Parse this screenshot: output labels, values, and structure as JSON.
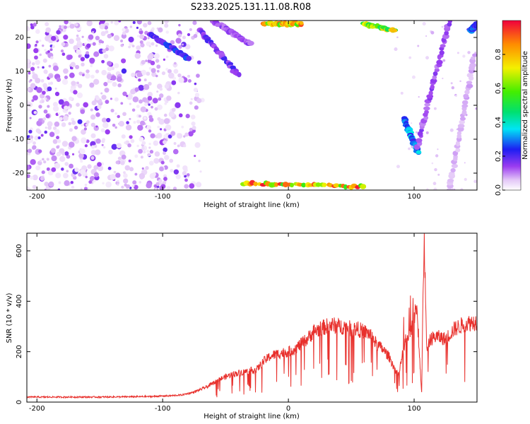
{
  "title": "S233.2025.131.11.08.R08",
  "colors": {
    "snr_line": "#e8302c",
    "frame": "#000000"
  },
  "chart_data": [
    {
      "type": "heatmap",
      "xlabel": "Height of straight line (km)",
      "ylabel": "Frequency (Hz)",
      "xlim": [
        -208,
        150
      ],
      "ylim": [
        -25,
        25
      ],
      "xticks": [
        -200,
        -100,
        0,
        100
      ],
      "yticks": [
        -20,
        -10,
        0,
        10,
        20
      ],
      "colorbar": {
        "label": "Normalized spectral amplitude",
        "range": [
          0,
          1
        ],
        "ticks": [
          "0.0",
          "0.2",
          "0.4",
          "0.6",
          "0.8"
        ],
        "tick_values": [
          0.0,
          0.2,
          0.4,
          0.6,
          0.8
        ]
      },
      "features": [
        {
          "x0": -110,
          "y0": 21,
          "x1": -80,
          "y1": 14,
          "amp": 0.25
        },
        {
          "x0": -70,
          "y0": 22,
          "x1": -40,
          "y1": 9,
          "amp": 0.2
        },
        {
          "x0": -60,
          "y0": 25,
          "x1": -30,
          "y1": 18,
          "amp": 0.15
        },
        {
          "x0": -20,
          "y0": 24,
          "x1": 10,
          "y1": 24,
          "amp": 0.85
        },
        {
          "x0": 60,
          "y0": 24,
          "x1": 85,
          "y1": 22,
          "amp": 0.75
        },
        {
          "x0": -35,
          "y0": -23,
          "x1": 60,
          "y1": -24,
          "amp": 0.9
        },
        {
          "x0": 92,
          "y0": -4,
          "x1": 103,
          "y1": -14,
          "amp": 0.35
        },
        {
          "x0": 103,
          "y0": -12,
          "x1": 128,
          "y1": 25,
          "amp": 0.15
        },
        {
          "x0": 128,
          "y0": -25,
          "x1": 148,
          "y1": 15,
          "amp": 0.08
        },
        {
          "x0": 145,
          "y0": 22,
          "x1": 150,
          "y1": 24,
          "amp": 0.3
        }
      ]
    },
    {
      "type": "line",
      "xlabel": "Height of straight line (km)",
      "ylabel": "SNR (10 * v/v)",
      "xlim": [
        -208,
        150
      ],
      "ylim": [
        0,
        670
      ],
      "xticks": [
        -200,
        -100,
        0,
        100
      ],
      "yticks": [
        0,
        200,
        400,
        600
      ],
      "series": [
        {
          "x": [
            -208,
            -190,
            -170,
            -150,
            -130,
            -110,
            -95,
            -85,
            -75,
            -65,
            -55,
            -45,
            -35,
            -25,
            -20,
            -15,
            -10,
            -5,
            0,
            5,
            10,
            15,
            20,
            25,
            30,
            35,
            40,
            45,
            50,
            55,
            60,
            65,
            70,
            75,
            80,
            85,
            88,
            90,
            93,
            95,
            98,
            100,
            102,
            104,
            106,
            107,
            108,
            110,
            113,
            118,
            125,
            132,
            140,
            150
          ],
          "y": [
            20,
            20,
            20,
            20,
            21,
            22,
            25,
            28,
            40,
            60,
            90,
            110,
            120,
            130,
            160,
            180,
            190,
            195,
            200,
            210,
            230,
            250,
            280,
            290,
            300,
            305,
            300,
            300,
            290,
            290,
            280,
            270,
            230,
            210,
            180,
            130,
            110,
            170,
            240,
            260,
            300,
            340,
            370,
            210,
            30,
            400,
            660,
            200,
            250,
            260,
            250,
            290,
            310,
            320
          ]
        }
      ]
    }
  ]
}
